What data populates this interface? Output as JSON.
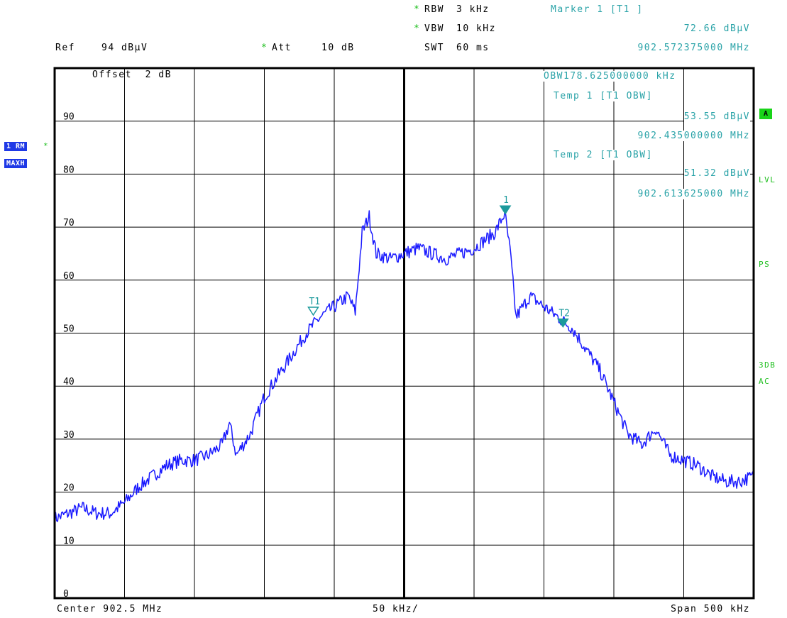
{
  "header": {
    "rbw_label": "RBW",
    "rbw_value": "3 kHz",
    "vbw_label": "VBW",
    "vbw_value": "10 kHz",
    "swt_label": "SWT",
    "swt_value": "60 ms",
    "ref_label": "Ref",
    "ref_value": "94 dBµV",
    "att_label": "Att",
    "att_value": "10 dB",
    "marker_title": "Marker 1 [T1 ]",
    "marker_level": "72.66 dBµV",
    "marker_freq": "902.572375000 MHz",
    "star": "*"
  },
  "overlay": {
    "offset": "Offset  2 dB",
    "obw": "OBW178.625000000 kHz",
    "temp1_title": "Temp 1 [T1 OBW]",
    "temp1_level": "53.55 dBµV",
    "temp1_freq": "902.435000000 MHz",
    "temp2_title": "Temp 2 [T1 OBW]",
    "temp2_level": "51.32 dBµV",
    "temp2_freq": "902.613625000 MHz"
  },
  "left_badges": {
    "trace": "1 RM",
    "mode": "MAXH"
  },
  "right_indicators": {
    "a": "A",
    "lvl": "LVL",
    "ps": "PS",
    "db3": "3DB",
    "ac": "AC"
  },
  "footer": {
    "center": "Center 902.5 MHz",
    "div": "50 kHz/",
    "span": "Span 500 kHz"
  },
  "colors": {
    "trace": "#1a1aff",
    "marker": "#1c9a9c",
    "grid": "#000000"
  },
  "chart_data": {
    "type": "line",
    "title": "",
    "xlabel": "",
    "ylabel": "",
    "xlim": [
      902.25,
      902.75
    ],
    "ylim": [
      0,
      100
    ],
    "y_ticks": [
      90,
      80,
      70,
      60,
      50,
      40,
      30,
      20,
      10,
      0
    ],
    "grid": true,
    "series": [
      {
        "x": [
          902.25,
          902.26,
          902.27,
          902.28,
          902.29,
          902.3,
          902.31,
          902.32,
          902.33,
          902.34,
          902.35,
          902.36,
          902.37,
          902.375,
          902.38,
          902.39,
          902.4,
          902.41,
          902.42,
          902.43,
          902.44,
          902.45,
          902.46,
          902.465,
          902.47,
          902.475,
          902.48,
          902.49,
          902.5,
          902.51,
          902.52,
          902.53,
          902.54,
          902.55,
          902.565,
          902.572,
          902.576,
          902.58,
          902.59,
          902.6,
          902.61,
          902.62,
          902.63,
          902.64,
          902.65,
          902.655,
          902.66,
          902.67,
          902.68,
          902.69,
          902.7,
          902.71,
          902.72,
          902.73,
          902.74,
          902.75
        ],
        "values": [
          15,
          16,
          17,
          16,
          16,
          18,
          21,
          23,
          25,
          26,
          26,
          27,
          29,
          33,
          27,
          31,
          38,
          42,
          46,
          50,
          53,
          55,
          57,
          54,
          69,
          72,
          65,
          64,
          65,
          66,
          65,
          64,
          65,
          66,
          69,
          72.66,
          65,
          53,
          57,
          55,
          53,
          51,
          47,
          43,
          37,
          34,
          31,
          29,
          32,
          27,
          26,
          25,
          23,
          22,
          22,
          23
        ]
      }
    ],
    "markers": [
      {
        "label": "1",
        "x": 902.572375,
        "y": 72.66
      },
      {
        "label": "T1",
        "x": 902.435,
        "y": 53.55
      },
      {
        "label": "T2",
        "x": 902.613625,
        "y": 51.32
      }
    ]
  }
}
